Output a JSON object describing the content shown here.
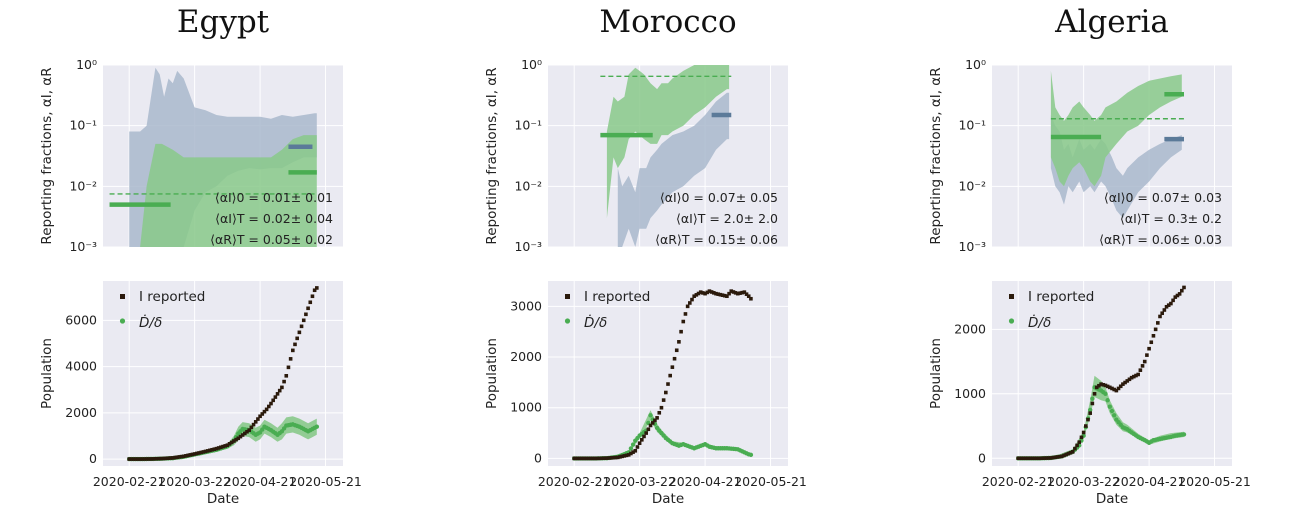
{
  "chart_data": [
    {
      "title": "Egypt",
      "top": {
        "type": "area",
        "ylabel": "Reporting fractions, αI, αR",
        "yscale": "log",
        "ylim": [
          0.001,
          1
        ],
        "yticks": [
          "10⁻³",
          "10⁻²",
          "10⁻¹",
          "10⁰"
        ],
        "annotations": [
          "⟨αI⟩0 = 0.01± 0.01",
          "⟨αI⟩T = 0.02± 0.04",
          "⟨αR⟩T = 0.05± 0.02"
        ],
        "alphaI_band": {
          "x": [
            0,
            5,
            8,
            12,
            15,
            20,
            25,
            30,
            35,
            40,
            45,
            50,
            55,
            60,
            65,
            70,
            75,
            80,
            85,
            86
          ],
          "upper": [
            0.001,
            0.001,
            0.01,
            0.05,
            0.05,
            0.04,
            0.03,
            0.03,
            0.03,
            0.03,
            0.03,
            0.03,
            0.03,
            0.03,
            0.03,
            0.04,
            0.06,
            0.07,
            0.07,
            0.07
          ],
          "lower": [
            0.001,
            0.001,
            0.001,
            0.001,
            0.001,
            0.001,
            0.001,
            0.001,
            0.001,
            0.001,
            0.001,
            0.001,
            0.001,
            0.001,
            0.001,
            0.001,
            0.001,
            0.001,
            0.001,
            0.001
          ]
        },
        "alphaR_band": {
          "x": [
            0,
            5,
            8,
            10,
            12,
            14,
            16,
            18,
            20,
            22,
            25,
            30,
            35,
            40,
            45,
            50,
            55,
            60,
            65,
            70,
            75,
            80,
            85,
            86
          ],
          "upper": [
            0.08,
            0.08,
            0.1,
            0.3,
            0.9,
            0.7,
            0.3,
            0.6,
            0.5,
            0.8,
            0.6,
            0.2,
            0.18,
            0.15,
            0.14,
            0.14,
            0.14,
            0.14,
            0.13,
            0.15,
            0.14,
            0.15,
            0.16,
            0.16
          ],
          "lower": [
            0.001,
            0.001,
            0.001,
            0.001,
            0.001,
            0.001,
            0.001,
            0.001,
            0.001,
            0.001,
            0.001,
            0.004,
            0.008,
            0.01,
            0.015,
            0.018,
            0.02,
            0.019,
            0.02,
            0.02,
            0.025,
            0.03,
            0.03,
            0.03
          ]
        },
        "alphaI0_level": {
          "x": [
            -9,
            19
          ],
          "y": 0.005
        },
        "alphaI_T_level": {
          "x": [
            73,
            86
          ],
          "y": 0.017
        },
        "alphaR_T_level": {
          "x": [
            73,
            84
          ],
          "y": 0.045
        },
        "dashed_level": {
          "x": [
            -9,
            86
          ],
          "y": 0.0075
        }
      },
      "bottom": {
        "type": "scatter",
        "xlabel": "Date",
        "ylabel": "Population",
        "ylim": [
          -300,
          7700
        ],
        "yticks": [
          0,
          2000,
          4000,
          6000
        ],
        "xticks": [
          "2020-02-21",
          "2020-03-22",
          "2020-04-21",
          "2020-05-21"
        ],
        "legend": [
          "I reported",
          "Ḋ/δ"
        ],
        "I_reported": {
          "x": [
            0,
            5,
            10,
            15,
            20,
            25,
            30,
            35,
            40,
            45,
            50,
            55,
            60,
            63,
            65,
            70,
            72,
            75,
            80,
            85,
            86
          ],
          "y": [
            0,
            0,
            5,
            20,
            50,
            120,
            220,
            330,
            450,
            600,
            900,
            1250,
            1850,
            2150,
            2400,
            3100,
            3600,
            4700,
            6000,
            7300,
            7400
          ]
        },
        "D_over_delta": {
          "x": [
            0,
            5,
            10,
            15,
            20,
            25,
            30,
            35,
            40,
            45,
            48,
            50,
            52,
            55,
            58,
            60,
            62,
            65,
            68,
            70,
            72,
            75,
            78,
            80,
            82,
            84,
            86
          ],
          "y": [
            0,
            0,
            5,
            15,
            40,
            100,
            200,
            300,
            400,
            550,
            800,
            1100,
            1300,
            1250,
            1050,
            1150,
            1400,
            1250,
            1050,
            1200,
            1450,
            1500,
            1400,
            1300,
            1200,
            1300,
            1400
          ]
        },
        "D_band": {
          "x": [
            0,
            10,
            20,
            30,
            40,
            45,
            48,
            50,
            52,
            55,
            58,
            60,
            62,
            65,
            68,
            70,
            72,
            75,
            78,
            80,
            82,
            84,
            86
          ],
          "upper": [
            0,
            10,
            60,
            230,
            480,
            650,
            1000,
            1400,
            1600,
            1550,
            1350,
            1450,
            1700,
            1550,
            1350,
            1550,
            1800,
            1850,
            1750,
            1650,
            1550,
            1650,
            1750
          ],
          "lower": [
            0,
            0,
            20,
            170,
            320,
            450,
            600,
            800,
            1000,
            950,
            750,
            850,
            1100,
            950,
            750,
            850,
            1100,
            1150,
            1050,
            950,
            850,
            950,
            1050
          ]
        }
      }
    },
    {
      "title": "Morocco",
      "top": {
        "type": "area",
        "ylabel": "Reporting fractions, αI, αR",
        "yscale": "log",
        "ylim": [
          0.001,
          1
        ],
        "yticks": [
          "10⁻³",
          "10⁻²",
          "10⁻¹",
          "10⁰"
        ],
        "annotations": [
          "⟨αI⟩0 = 0.07± 0.05",
          "⟨αI⟩T = 2.0± 2.0",
          "⟨αR⟩T = 0.15± 0.06"
        ],
        "alphaI_band": {
          "x": [
            15,
            18,
            20,
            23,
            25,
            28,
            30,
            32,
            35,
            38,
            40,
            43,
            45,
            50,
            55,
            60,
            65,
            70,
            71
          ],
          "upper": [
            0.08,
            0.3,
            0.25,
            0.3,
            0.7,
            0.9,
            0.8,
            0.7,
            0.5,
            0.4,
            0.5,
            0.5,
            0.6,
            0.8,
            1,
            1,
            1,
            1,
            1
          ],
          "lower": [
            0.003,
            0.03,
            0.02,
            0.03,
            0.06,
            0.08,
            0.07,
            0.06,
            0.05,
            0.05,
            0.07,
            0.07,
            0.08,
            0.1,
            0.15,
            0.2,
            0.3,
            0.4,
            0.4
          ]
        },
        "alphaR_band": {
          "x": [
            20,
            22,
            25,
            28,
            30,
            33,
            35,
            38,
            40,
            45,
            50,
            55,
            60,
            65,
            70,
            71
          ],
          "upper": [
            0.02,
            0.01,
            0.015,
            0.008,
            0.02,
            0.02,
            0.03,
            0.04,
            0.05,
            0.07,
            0.08,
            0.1,
            0.15,
            0.25,
            0.35,
            0.35
          ],
          "lower": [
            0.001,
            0.001,
            0.002,
            0.001,
            0.002,
            0.002,
            0.003,
            0.004,
            0.005,
            0.008,
            0.01,
            0.015,
            0.02,
            0.04,
            0.06,
            0.06
          ]
        },
        "alphaI0_level": {
          "x": [
            12,
            36
          ],
          "y": 0.07
        },
        "alphaR_T_level": {
          "x": [
            63,
            72
          ],
          "y": 0.15
        },
        "dashed_level": {
          "x": [
            12,
            72
          ],
          "y": 0.65
        }
      },
      "bottom": {
        "type": "scatter",
        "xlabel": "Date",
        "ylabel": "Population",
        "ylim": [
          -150,
          3500
        ],
        "yticks": [
          0,
          1000,
          2000,
          3000
        ],
        "xticks": [
          "2020-02-21",
          "2020-03-22",
          "2020-04-21",
          "2020-05-21"
        ],
        "legend": [
          "I reported",
          "Ḋ/δ"
        ],
        "I_reported": {
          "x": [
            0,
            10,
            15,
            20,
            25,
            28,
            30,
            33,
            35,
            38,
            40,
            42,
            45,
            48,
            50,
            52,
            55,
            58,
            60,
            62,
            65,
            70,
            72,
            75,
            78,
            80,
            81
          ],
          "y": [
            0,
            0,
            5,
            20,
            70,
            150,
            300,
            500,
            650,
            800,
            1000,
            1300,
            1800,
            2300,
            2700,
            3000,
            3200,
            3280,
            3250,
            3300,
            3250,
            3200,
            3300,
            3250,
            3280,
            3200,
            3150
          ]
        },
        "D_over_delta": {
          "x": [
            0,
            10,
            15,
            20,
            25,
            28,
            30,
            33,
            35,
            38,
            40,
            42,
            45,
            48,
            50,
            55,
            60,
            62,
            65,
            70,
            75,
            78,
            80,
            81
          ],
          "y": [
            0,
            0,
            5,
            30,
            120,
            350,
            450,
            550,
            850,
            600,
            500,
            400,
            300,
            250,
            280,
            200,
            280,
            230,
            200,
            200,
            180,
            120,
            80,
            70
          ]
        },
        "D_band": {
          "x": [
            0,
            15,
            25,
            30,
            35,
            38,
            40,
            45,
            50,
            55,
            60,
            65,
            70,
            75,
            81
          ],
          "upper": [
            0,
            10,
            150,
            500,
            950,
            680,
            560,
            340,
            310,
            230,
            310,
            230,
            230,
            200,
            90
          ],
          "lower": [
            0,
            0,
            90,
            400,
            750,
            520,
            440,
            260,
            250,
            170,
            250,
            170,
            170,
            160,
            50
          ]
        }
      }
    },
    {
      "title": "Algeria",
      "top": {
        "type": "area",
        "ylabel": "Reporting fractions, αI, αR",
        "yscale": "log",
        "ylim": [
          0.001,
          1
        ],
        "yticks": [
          "10⁻³",
          "10⁻²",
          "10⁻¹",
          "10⁰"
        ],
        "annotations": [
          "⟨αI⟩0 = 0.07± 0.03",
          "⟨αI⟩T = 0.3± 0.2",
          "⟨αR⟩T = 0.06± 0.03"
        ],
        "alphaI_band": {
          "x": [
            15,
            17,
            19,
            21,
            23,
            25,
            28,
            30,
            33,
            35,
            38,
            40,
            45,
            50,
            55,
            60,
            65,
            70,
            75
          ],
          "upper": [
            0.8,
            0.2,
            0.15,
            0.12,
            0.15,
            0.2,
            0.25,
            0.2,
            0.15,
            0.12,
            0.15,
            0.2,
            0.25,
            0.35,
            0.45,
            0.55,
            0.6,
            0.65,
            0.7
          ],
          "lower": [
            0.03,
            0.02,
            0.012,
            0.01,
            0.015,
            0.02,
            0.025,
            0.02,
            0.012,
            0.01,
            0.015,
            0.03,
            0.05,
            0.08,
            0.1,
            0.15,
            0.2,
            0.25,
            0.3
          ]
        },
        "alphaR_band": {
          "x": [
            15,
            17,
            19,
            21,
            23,
            25,
            28,
            30,
            33,
            35,
            38,
            40,
            43,
            45,
            48,
            50,
            55,
            60,
            65,
            70,
            75
          ],
          "upper": [
            0.15,
            0.1,
            0.08,
            0.04,
            0.05,
            0.03,
            0.06,
            0.04,
            0.05,
            0.04,
            0.06,
            0.05,
            0.03,
            0.02,
            0.015,
            0.02,
            0.03,
            0.04,
            0.05,
            0.06,
            0.07
          ],
          "lower": [
            0.02,
            0.01,
            0.008,
            0.005,
            0.01,
            0.008,
            0.012,
            0.008,
            0.01,
            0.008,
            0.012,
            0.01,
            0.006,
            0.004,
            0.003,
            0.004,
            0.008,
            0.012,
            0.02,
            0.03,
            0.04
          ]
        },
        "alphaI0_level": {
          "x": [
            15,
            38
          ],
          "y": 0.065
        },
        "alphaI_T_level": {
          "x": [
            67,
            76
          ],
          "y": 0.33
        },
        "alphaR_T_level": {
          "x": [
            67,
            76
          ],
          "y": 0.06
        },
        "dashed_level": {
          "x": [
            15,
            76
          ],
          "y": 0.13
        }
      },
      "bottom": {
        "type": "scatter",
        "xlabel": "Date",
        "ylabel": "Population",
        "ylim": [
          -120,
          2750
        ],
        "yticks": [
          0,
          1000,
          2000
        ],
        "xticks": [
          "2020-02-21",
          "2020-03-22",
          "2020-04-21",
          "2020-05-21"
        ],
        "legend": [
          "I reported",
          "Ḋ/δ"
        ],
        "I_reported": {
          "x": [
            0,
            10,
            15,
            20,
            25,
            28,
            30,
            33,
            35,
            36,
            38,
            40,
            42,
            45,
            48,
            50,
            52,
            55,
            58,
            60,
            62,
            65,
            68,
            70,
            72,
            74,
            76
          ],
          "y": [
            0,
            0,
            5,
            30,
            100,
            250,
            400,
            700,
            1000,
            1100,
            1150,
            1130,
            1100,
            1050,
            1150,
            1200,
            1250,
            1300,
            1500,
            1700,
            1900,
            2200,
            2350,
            2400,
            2500,
            2550,
            2650
          ]
        },
        "D_over_delta": {
          "x": [
            0,
            10,
            15,
            20,
            25,
            28,
            30,
            33,
            35,
            38,
            40,
            42,
            45,
            48,
            50,
            52,
            55,
            58,
            60,
            62,
            65,
            68,
            70,
            72,
            74,
            76
          ],
          "y": [
            0,
            0,
            5,
            30,
            100,
            200,
            350,
            750,
            1100,
            1050,
            1000,
            800,
            600,
            480,
            450,
            400,
            330,
            280,
            240,
            280,
            300,
            320,
            330,
            350,
            360,
            370
          ]
        },
        "D_band": {
          "x": [
            0,
            15,
            25,
            30,
            33,
            35,
            38,
            40,
            42,
            45,
            48,
            50,
            55,
            60,
            65,
            70,
            76
          ],
          "upper": [
            0,
            10,
            140,
            420,
            900,
            1280,
            1200,
            1100,
            900,
            700,
            560,
            520,
            380,
            280,
            350,
            390,
            410
          ],
          "lower": [
            0,
            0,
            80,
            300,
            650,
            950,
            900,
            880,
            700,
            520,
            420,
            400,
            300,
            210,
            260,
            300,
            330
          ]
        }
      }
    }
  ],
  "colors": {
    "plot_bg": "#eaeaf2",
    "grid": "#ffffff",
    "alphaI": "#4aad52",
    "alphaI_band": "#88c98a",
    "alphaR": "#5b7a99",
    "alphaR_band": "#a9b8cc",
    "I_reported_marker": "#2b1a0c",
    "D_marker": "#4aad52"
  }
}
